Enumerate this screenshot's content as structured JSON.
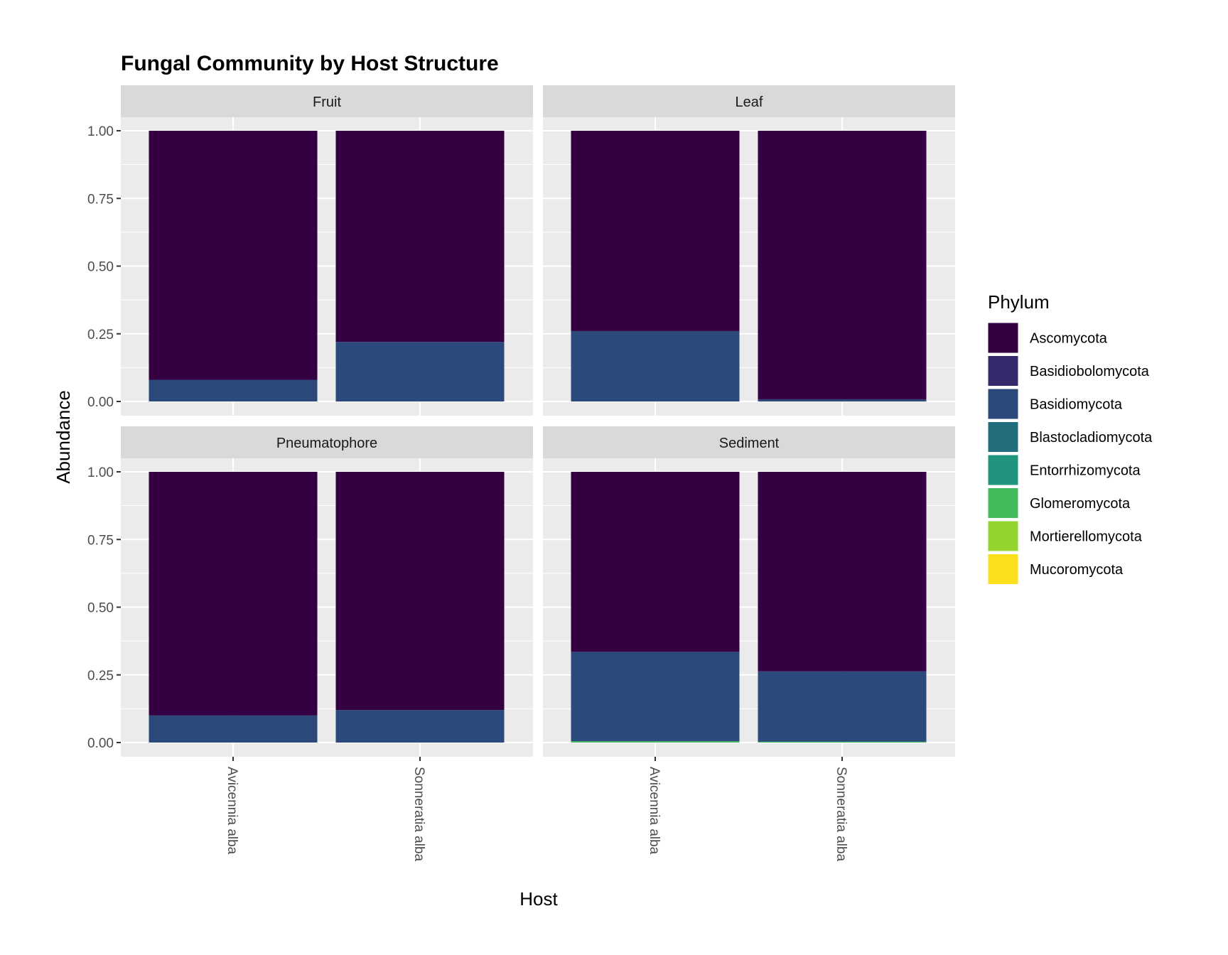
{
  "chart_data": {
    "type": "bar",
    "stacked": true,
    "title": "Fungal Community by Host Structure",
    "xlabel": "Host",
    "ylabel": "Abundance",
    "ylim": [
      0,
      1
    ],
    "yticks": [
      "0.00",
      "0.25",
      "0.50",
      "0.75",
      "1.00"
    ],
    "ytick_values": [
      0,
      0.25,
      0.5,
      0.75,
      1.0
    ],
    "categories": [
      "Avicennia alba",
      "Sonneratia alba"
    ],
    "legend": {
      "title": "Phylum",
      "position": "right",
      "entries": [
        {
          "name": "Ascomycota",
          "color": "#340042"
        },
        {
          "name": "Basidiobolomycota",
          "color": "#35286B"
        },
        {
          "name": "Basidiomycota",
          "color": "#2B4A7B"
        },
        {
          "name": "Blastocladiomycota",
          "color": "#226D7C"
        },
        {
          "name": "Entorrhizomycota",
          "color": "#20947C"
        },
        {
          "name": "Glomeromycota",
          "color": "#41BB5C"
        },
        {
          "name": "Mortierellomycota",
          "color": "#93D52E"
        },
        {
          "name": "Mucoromycota",
          "color": "#FCE01E"
        }
      ]
    },
    "panels": [
      {
        "name": "Fruit",
        "bars": [
          {
            "host": "Avicennia alba",
            "segments": [
              {
                "phylum": "Basidiomycota",
                "value": 0.08
              },
              {
                "phylum": "Ascomycota",
                "value": 0.92
              }
            ]
          },
          {
            "host": "Sonneratia alba",
            "segments": [
              {
                "phylum": "Basidiomycota",
                "value": 0.22
              },
              {
                "phylum": "Ascomycota",
                "value": 0.78
              }
            ]
          }
        ]
      },
      {
        "name": "Leaf",
        "bars": [
          {
            "host": "Avicennia alba",
            "segments": [
              {
                "phylum": "Basidiomycota",
                "value": 0.26
              },
              {
                "phylum": "Ascomycota",
                "value": 0.74
              }
            ]
          },
          {
            "host": "Sonneratia alba",
            "segments": [
              {
                "phylum": "Basidiomycota",
                "value": 0.008
              },
              {
                "phylum": "Ascomycota",
                "value": 0.992
              }
            ]
          }
        ]
      },
      {
        "name": "Pneumatophore",
        "bars": [
          {
            "host": "Avicennia alba",
            "segments": [
              {
                "phylum": "Basidiomycota",
                "value": 0.1
              },
              {
                "phylum": "Ascomycota",
                "value": 0.9
              }
            ]
          },
          {
            "host": "Sonneratia alba",
            "segments": [
              {
                "phylum": "Basidiomycota",
                "value": 0.12
              },
              {
                "phylum": "Ascomycota",
                "value": 0.88
              }
            ]
          }
        ]
      },
      {
        "name": "Sediment",
        "bars": [
          {
            "host": "Avicennia alba",
            "segments": [
              {
                "phylum": "Glomeromycota",
                "value": 0.005
              },
              {
                "phylum": "Basidiomycota",
                "value": 0.33
              },
              {
                "phylum": "Ascomycota",
                "value": 0.665
              }
            ]
          },
          {
            "host": "Sonneratia alba",
            "segments": [
              {
                "phylum": "Glomeromycota",
                "value": 0.003
              },
              {
                "phylum": "Basidiomycota",
                "value": 0.26
              },
              {
                "phylum": "Ascomycota",
                "value": 0.737
              }
            ]
          }
        ]
      }
    ]
  }
}
